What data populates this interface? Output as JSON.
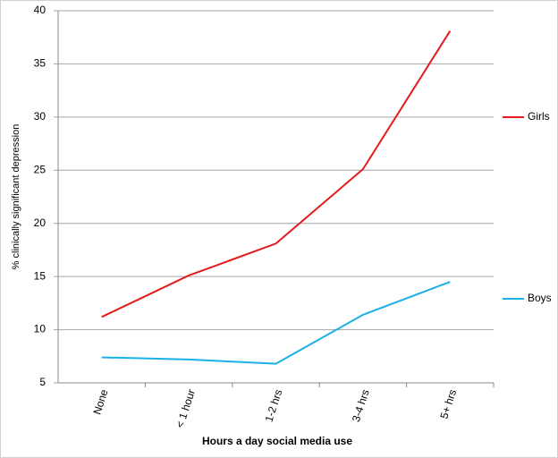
{
  "chart_data": {
    "type": "line",
    "x_label": "Hours a day social media use",
    "y_label": "% clinically significant depression",
    "categories": [
      "None",
      "< 1 hour",
      "1-2 hrs",
      "3-4 hrs",
      "5+ hrs"
    ],
    "series": [
      {
        "name": "Girls",
        "color": "#e31b1b",
        "values": [
          11.2,
          15.1,
          18.1,
          25.1,
          38.1
        ]
      },
      {
        "name": "Boys",
        "color": "#1ab0e8",
        "values": [
          7.4,
          7.2,
          6.8,
          11.4,
          14.5
        ]
      }
    ],
    "ylim": [
      5,
      40
    ],
    "yticks": [
      5,
      10,
      15,
      20,
      25,
      30,
      35,
      40
    ],
    "grid": true,
    "legend": "right"
  }
}
